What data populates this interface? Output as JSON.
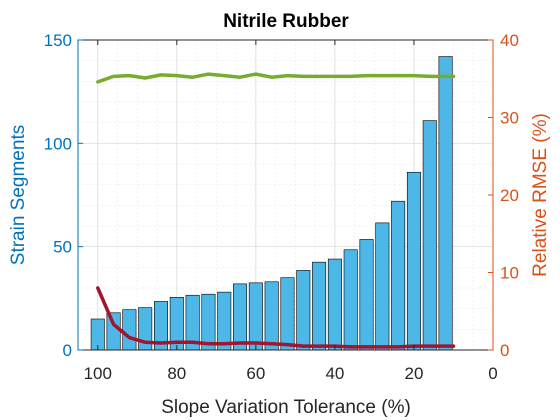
{
  "chart_data": {
    "type": "bar",
    "title": "Nitrile Rubber",
    "xlabel": "Slope Variation Tolerance (%)",
    "ylabel_left": "Strain Segments",
    "ylabel_right": "Relative RMSE (%)",
    "x_reversed": true,
    "xlim": [
      0,
      105
    ],
    "ylim_left": [
      0,
      150
    ],
    "ylim_right": [
      0,
      40
    ],
    "x_ticks": [
      100,
      80,
      60,
      40,
      20,
      0
    ],
    "y_left_ticks": [
      0,
      50,
      100,
      150
    ],
    "y_right_ticks": [
      0,
      10,
      20,
      30,
      40
    ],
    "grid": true,
    "colors": {
      "bars": "#4db8e8",
      "bar_edge": "#000000",
      "left_axis": "#0072bd",
      "right_axis": "#d95319",
      "line_green": "#77ac30",
      "line_red": "#a2142f"
    },
    "bars": {
      "x": [
        100,
        96,
        92,
        88,
        84,
        80,
        76,
        72,
        68,
        64,
        60,
        56,
        52,
        48,
        44,
        40,
        36,
        32,
        28,
        24,
        20,
        16,
        12,
        8
      ],
      "values": [
        15,
        18,
        19.5,
        20.5,
        23.5,
        25.5,
        26.5,
        27,
        28,
        32,
        32.5,
        33,
        35,
        38.5,
        42.5,
        44,
        48.5,
        53.5,
        61.5,
        72,
        86,
        111,
        142,
        0
      ]
    },
    "series": [
      {
        "axis": "right",
        "x": [
          100,
          96,
          92,
          88,
          84,
          80,
          76,
          72,
          68,
          64,
          60,
          56,
          52,
          48,
          44,
          40,
          36,
          32,
          28,
          24,
          20,
          16,
          12,
          10
        ],
        "values": [
          34.6,
          35.3,
          35.4,
          35.1,
          35.5,
          35.4,
          35.2,
          35.6,
          35.4,
          35.2,
          35.6,
          35.2,
          35.4,
          35.3,
          35.3,
          35.3,
          35.3,
          35.4,
          35.4,
          35.4,
          35.4,
          35.3,
          35.3,
          35.3
        ]
      },
      {
        "axis": "right",
        "x": [
          100,
          96,
          92,
          88,
          84,
          80,
          76,
          72,
          68,
          64,
          60,
          56,
          52,
          48,
          44,
          40,
          36,
          32,
          28,
          24,
          20,
          16,
          12,
          10
        ],
        "values": [
          8.0,
          3.3,
          1.6,
          1.0,
          0.9,
          1.0,
          1.0,
          0.8,
          0.8,
          0.9,
          0.9,
          0.8,
          0.7,
          0.5,
          0.5,
          0.5,
          0.4,
          0.4,
          0.4,
          0.4,
          0.5,
          0.5,
          0.5,
          0.5
        ]
      }
    ]
  }
}
